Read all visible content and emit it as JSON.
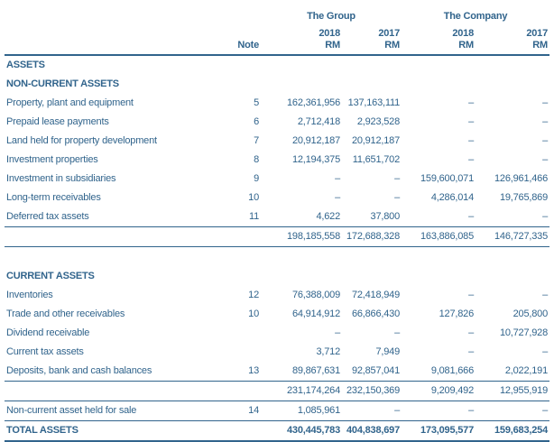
{
  "colors": {
    "ink": "#31648c",
    "background": "#ffffff"
  },
  "header": {
    "note_label": "Note",
    "groups": [
      {
        "label": "The Group",
        "years": [
          {
            "year": "2018",
            "unit": "RM"
          },
          {
            "year": "2017",
            "unit": "RM"
          }
        ]
      },
      {
        "label": "The Company",
        "years": [
          {
            "year": "2018",
            "unit": "RM"
          },
          {
            "year": "2017",
            "unit": "RM"
          }
        ]
      }
    ]
  },
  "rows": [
    {
      "type": "section",
      "label": "ASSETS"
    },
    {
      "type": "section",
      "label": "NON-CURRENT ASSETS"
    },
    {
      "type": "item",
      "label": "Property, plant and equipment",
      "note": "5",
      "values": [
        "162,361,956",
        "137,163,111",
        "–",
        "–"
      ]
    },
    {
      "type": "item",
      "label": "Prepaid lease payments",
      "note": "6",
      "values": [
        "2,712,418",
        "2,923,528",
        "–",
        "–"
      ]
    },
    {
      "type": "item",
      "label": "Land held for property development",
      "note": "7",
      "values": [
        "20,912,187",
        "20,912,187",
        "–",
        "–"
      ]
    },
    {
      "type": "item",
      "label": "Investment properties",
      "note": "8",
      "values": [
        "12,194,375",
        "11,651,702",
        "–",
        "–"
      ]
    },
    {
      "type": "item",
      "label": "Investment in subsidiaries",
      "note": "9",
      "values": [
        "–",
        "–",
        "159,600,071",
        "126,961,466"
      ]
    },
    {
      "type": "item",
      "label": "Long-term receivables",
      "note": "10",
      "values": [
        "–",
        "–",
        "4,286,014",
        "19,765,869"
      ]
    },
    {
      "type": "item",
      "label": "Deferred tax assets",
      "note": "11",
      "values": [
        "4,622",
        "37,800",
        "–",
        "–"
      ]
    },
    {
      "type": "subtotal",
      "values": [
        "198,185,558",
        "172,688,328",
        "163,886,085",
        "146,727,335"
      ]
    },
    {
      "type": "spacer"
    },
    {
      "type": "section",
      "label": "CURRENT ASSETS"
    },
    {
      "type": "item",
      "label": "Inventories",
      "note": "12",
      "values": [
        "76,388,009",
        "72,418,949",
        "–",
        "–"
      ]
    },
    {
      "type": "item",
      "label": "Trade and other receivables",
      "note": "10",
      "values": [
        "64,914,912",
        "66,866,430",
        "127,826",
        "205,800"
      ]
    },
    {
      "type": "item",
      "label": "Dividend receivable",
      "note": "",
      "values": [
        "–",
        "–",
        "–",
        "10,727,928"
      ]
    },
    {
      "type": "item",
      "label": "Current tax assets",
      "note": "",
      "values": [
        "3,712",
        "7,949",
        "–",
        "–"
      ]
    },
    {
      "type": "item",
      "label": "Deposits, bank and cash balances",
      "note": "13",
      "values": [
        "89,867,631",
        "92,857,041",
        "9,081,666",
        "2,022,191"
      ]
    },
    {
      "type": "subtotal",
      "values": [
        "231,174,264",
        "232,150,369",
        "9,209,492",
        "12,955,919"
      ]
    },
    {
      "type": "item",
      "underline": true,
      "label": "Non-current asset held for sale",
      "note": "14",
      "values": [
        "1,085,961",
        "–",
        "–",
        "–"
      ]
    },
    {
      "type": "total",
      "label": "TOTAL ASSETS",
      "values": [
        "430,445,783",
        "404,838,697",
        "173,095,577",
        "159,683,254"
      ]
    }
  ]
}
